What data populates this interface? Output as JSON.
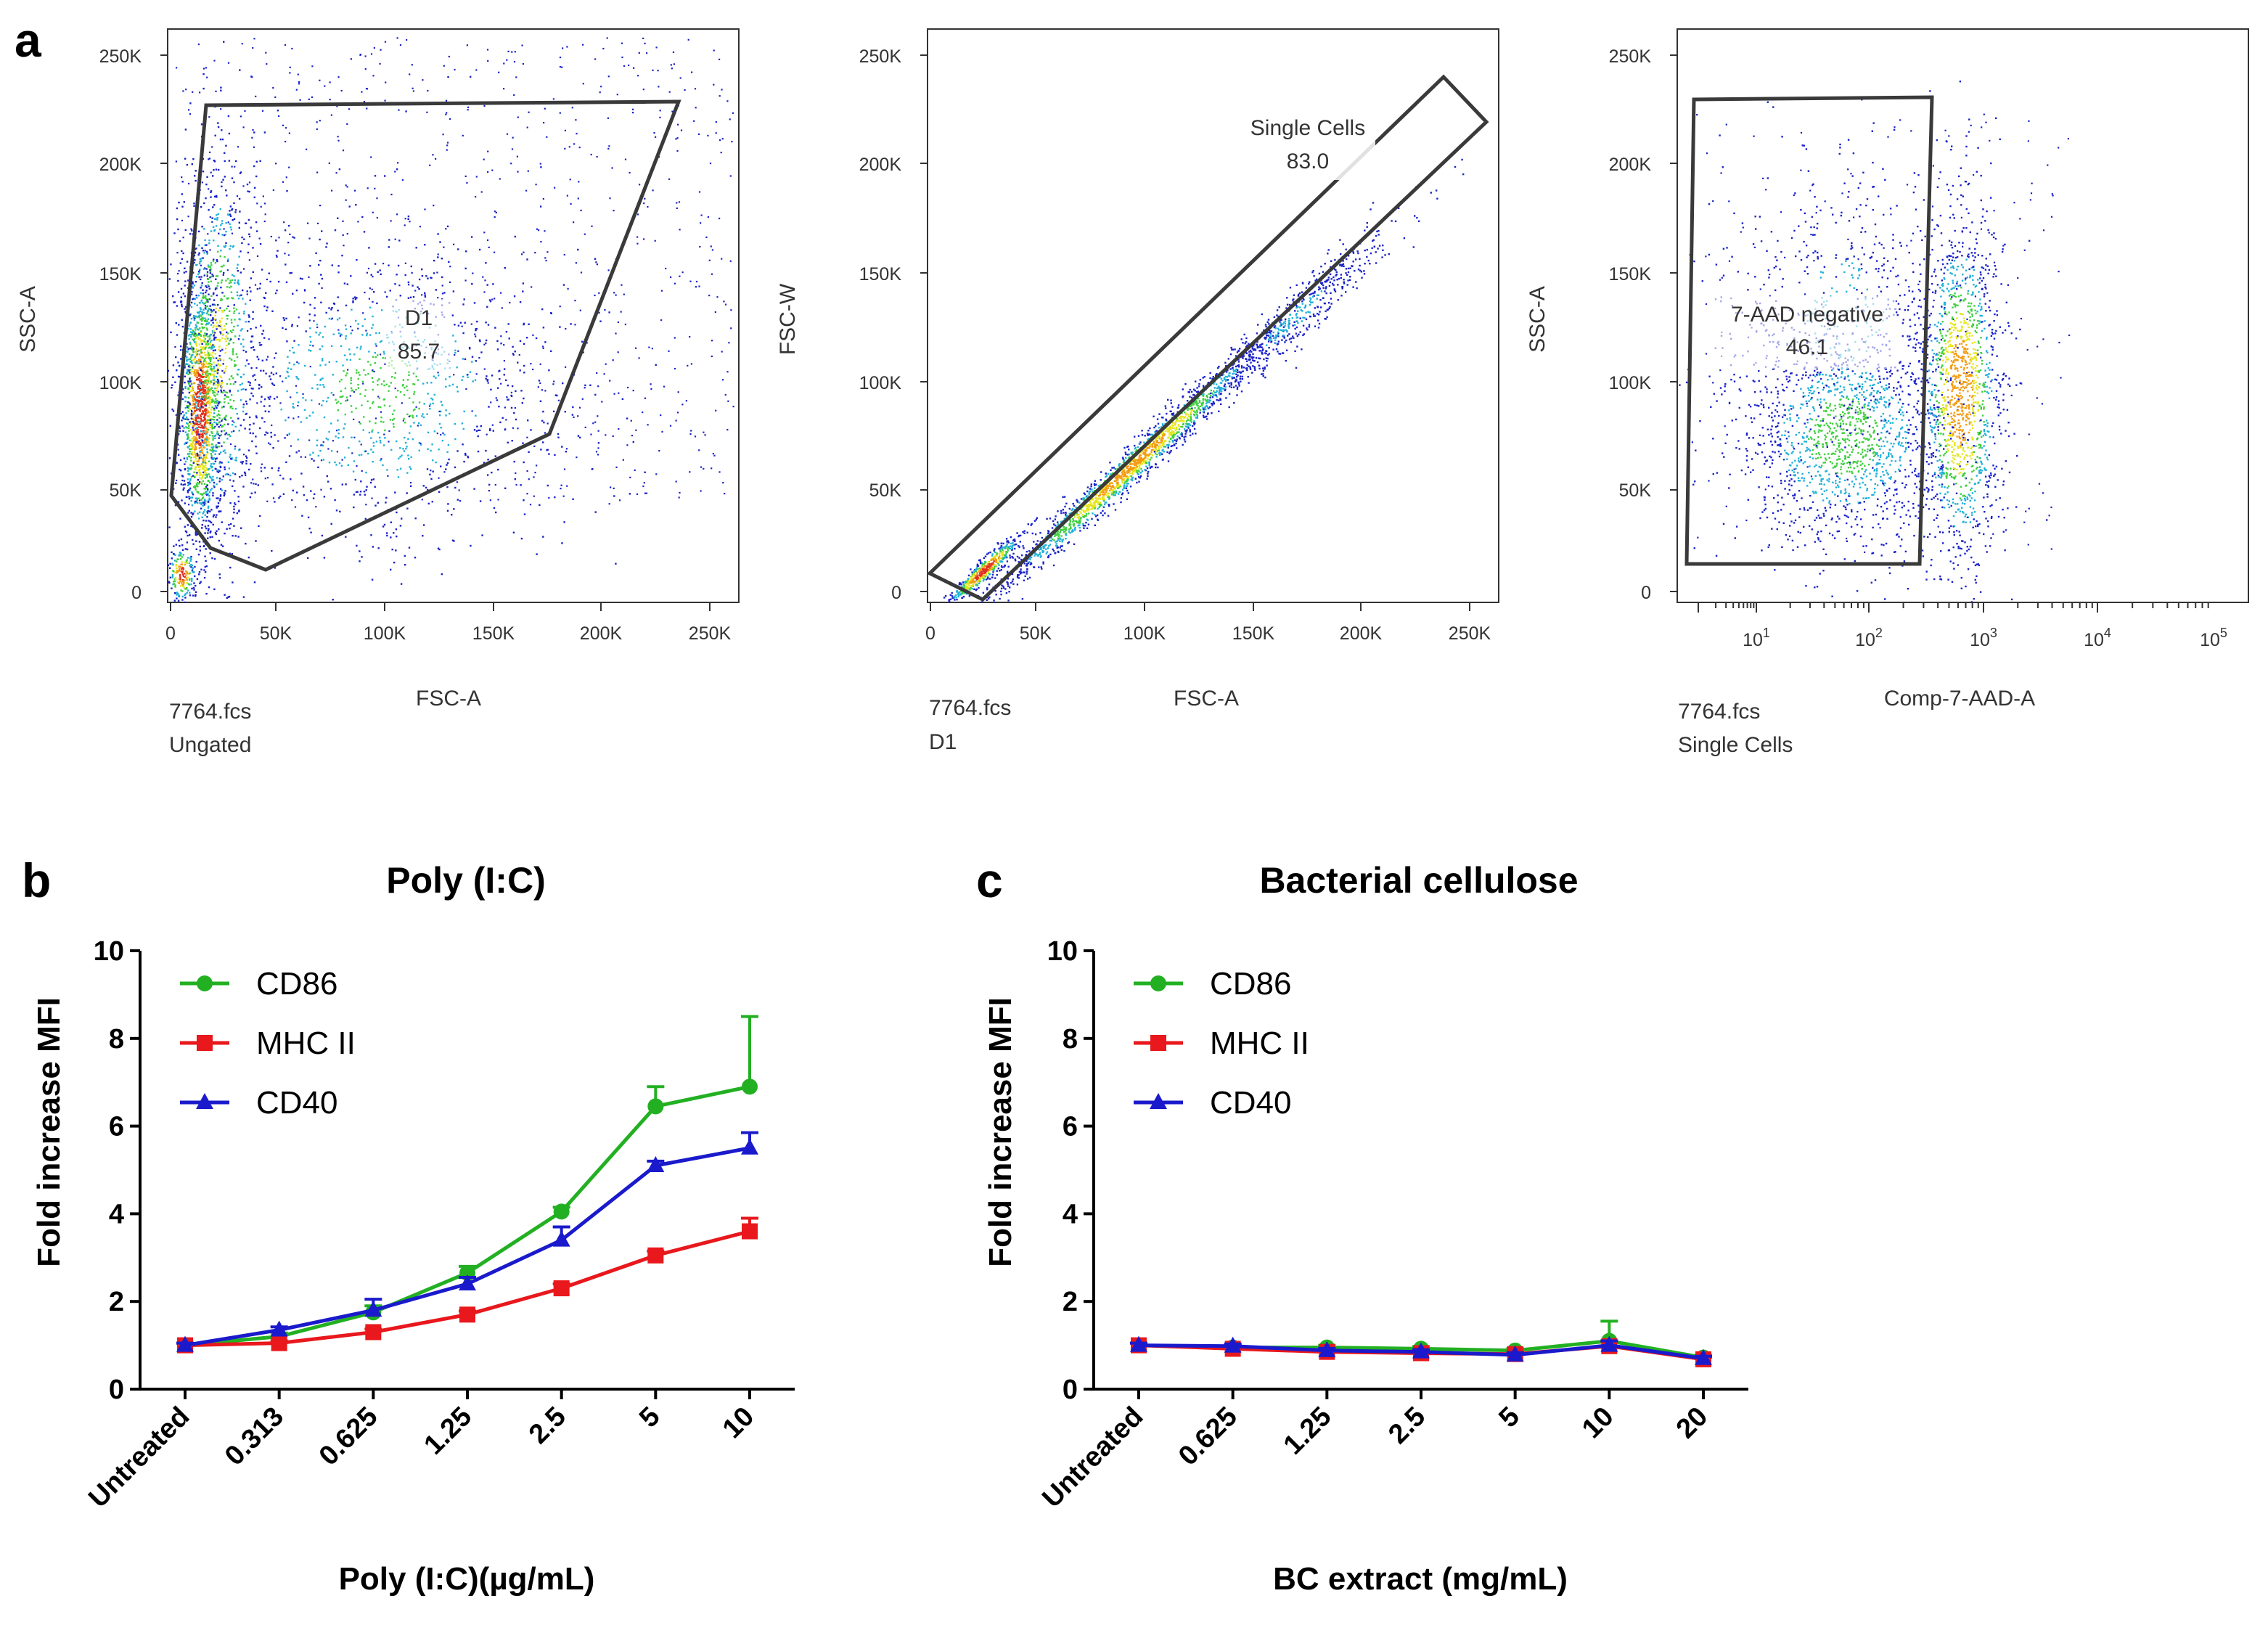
{
  "panel_a": {
    "letter": "a",
    "plots": [
      {
        "y_label": "SSC-A",
        "x_label": "FSC-A",
        "y_ticks": [
          "0",
          "50K",
          "100K",
          "150K",
          "200K",
          "250K"
        ],
        "x_ticks": [
          "0",
          "50K",
          "100K",
          "150K",
          "200K",
          "250K"
        ],
        "file": "7764.fcs",
        "parent": "Ungated",
        "gate_name": "D1",
        "gate_value": "85.7"
      },
      {
        "y_label": "FSC-W",
        "x_label": "FSC-A",
        "y_ticks": [
          "0",
          "50K",
          "100K",
          "150K",
          "200K",
          "250K"
        ],
        "x_ticks": [
          "0",
          "50K",
          "100K",
          "150K",
          "200K",
          "250K"
        ],
        "file": "7764.fcs",
        "parent": "D1",
        "gate_name": "Single Cells",
        "gate_value": "83.0"
      },
      {
        "y_label": "SSC-A",
        "x_label": "Comp-7-AAD-A",
        "y_ticks": [
          "0",
          "50K",
          "100K",
          "150K",
          "200K",
          "250K"
        ],
        "x_ticks": [
          "10",
          "10",
          "10",
          "10",
          "10"
        ],
        "x_tick_exponents": [
          "1",
          "2",
          "3",
          "4",
          "5"
        ],
        "file": "7764.fcs",
        "parent": "Single Cells",
        "gate_name": "7-AAD negative",
        "gate_value": "46.1"
      }
    ]
  },
  "chart_data": [
    {
      "panel": "b",
      "type": "line",
      "title": "Poly (I:C)",
      "xlabel": "Poly (I:C)(µg/mL)",
      "ylabel": "Fold increase MFI",
      "categories": [
        "Untreated",
        "0.313",
        "0.625",
        "1.25",
        "2.5",
        "5",
        "10"
      ],
      "ylim": [
        0,
        10
      ],
      "yticks": [
        "0",
        "2",
        "4",
        "6",
        "8",
        "10"
      ],
      "legend_position": "top-left",
      "series": [
        {
          "name": "CD86",
          "color": "#22b022",
          "marker": "circle",
          "values": [
            1.0,
            1.2,
            1.75,
            2.65,
            4.05,
            6.45,
            6.9
          ],
          "errors": [
            0.05,
            0.08,
            0.15,
            0.15,
            0.1,
            0.45,
            1.6
          ]
        },
        {
          "name": "MHC II",
          "color": "#e8181c",
          "marker": "square",
          "values": [
            1.0,
            1.05,
            1.3,
            1.7,
            2.3,
            3.05,
            3.6
          ],
          "errors": [
            0.05,
            0.05,
            0.07,
            0.08,
            0.1,
            0.1,
            0.3
          ]
        },
        {
          "name": "CD40",
          "color": "#1a1acc",
          "marker": "triangle",
          "values": [
            1.0,
            1.35,
            1.8,
            2.4,
            3.4,
            5.1,
            5.5
          ],
          "errors": [
            0.05,
            0.07,
            0.25,
            0.15,
            0.3,
            0.1,
            0.35
          ]
        }
      ]
    },
    {
      "panel": "c",
      "type": "line",
      "title": "Bacterial cellulose",
      "xlabel": "BC extract (mg/mL)",
      "ylabel": "Fold increase MFI",
      "categories": [
        "Untreated",
        "0.625",
        "1.25",
        "2.5",
        "5",
        "10",
        "20"
      ],
      "ylim": [
        0,
        10
      ],
      "yticks": [
        "0",
        "2",
        "4",
        "6",
        "8",
        "10"
      ],
      "legend_position": "top-left",
      "series": [
        {
          "name": "CD86",
          "color": "#22b022",
          "marker": "circle",
          "values": [
            1.0,
            0.95,
            0.95,
            0.92,
            0.88,
            1.1,
            0.72
          ],
          "errors": [
            0.05,
            0.05,
            0.05,
            0.05,
            0.05,
            0.45,
            0.05
          ]
        },
        {
          "name": "MHC II",
          "color": "#e8181c",
          "marker": "square",
          "values": [
            1.0,
            0.92,
            0.85,
            0.82,
            0.8,
            0.98,
            0.68
          ],
          "errors": [
            0.05,
            0.05,
            0.05,
            0.05,
            0.05,
            0.1,
            0.05
          ]
        },
        {
          "name": "CD40",
          "color": "#1a1acc",
          "marker": "triangle",
          "values": [
            1.0,
            0.98,
            0.88,
            0.85,
            0.78,
            1.0,
            0.7
          ],
          "errors": [
            0.05,
            0.05,
            0.05,
            0.05,
            0.05,
            0.1,
            0.05
          ]
        }
      ]
    }
  ]
}
